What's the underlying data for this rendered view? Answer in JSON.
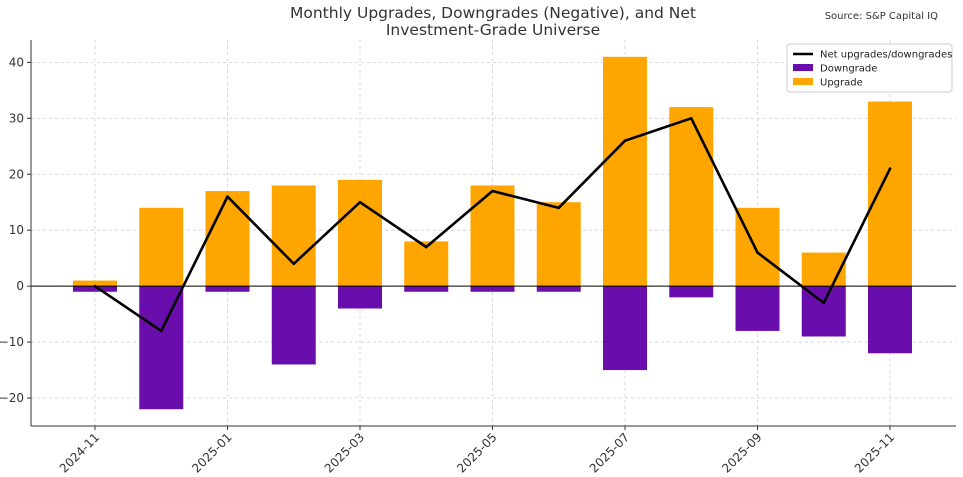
{
  "chart_data": {
    "type": "bar",
    "title_line1": "Monthly Upgrades, Downgrades (Negative), and Net",
    "title_line2": "Investment-Grade Universe",
    "source": "Source: S&P Capital IQ",
    "months": [
      "2024-11",
      "2024-12",
      "2025-01",
      "2025-02",
      "2025-03",
      "2025-04",
      "2025-05",
      "2025-06",
      "2025-07",
      "2025-08",
      "2025-09",
      "2025-10",
      "2025-11"
    ],
    "x_tick_labels": [
      "2024-11",
      "2025-01",
      "2025-03",
      "2025-05",
      "2025-07",
      "2025-09",
      "2025-11"
    ],
    "ylim": [
      -25,
      44
    ],
    "y_ticks": [
      -20,
      -10,
      0,
      10,
      20,
      30,
      40
    ],
    "y_tick_labels": [
      "−20",
      "−10",
      "0",
      "10",
      "20",
      "30",
      "40"
    ],
    "grid": true,
    "legend_position": "top-right",
    "series": [
      {
        "name": "Upgrade",
        "kind": "bar",
        "color": "#FFA500",
        "values": [
          1,
          14,
          17,
          18,
          19,
          8,
          18,
          15,
          41,
          32,
          14,
          6,
          33
        ]
      },
      {
        "name": "Downgrade",
        "kind": "bar",
        "color": "#6A0DAD",
        "values": [
          -1,
          -22,
          -1,
          -14,
          -4,
          -1,
          -1,
          -1,
          -15,
          -2,
          -8,
          -9,
          -12
        ]
      },
      {
        "name": "Net upgrades/downgrades",
        "kind": "line",
        "color": "#000000",
        "values": [
          0,
          -8,
          16,
          4,
          15,
          7,
          17,
          14,
          26,
          30,
          6,
          -3,
          21
        ]
      }
    ],
    "legend_entries": [
      "Net upgrades/downgrades",
      "Downgrade",
      "Upgrade"
    ]
  }
}
